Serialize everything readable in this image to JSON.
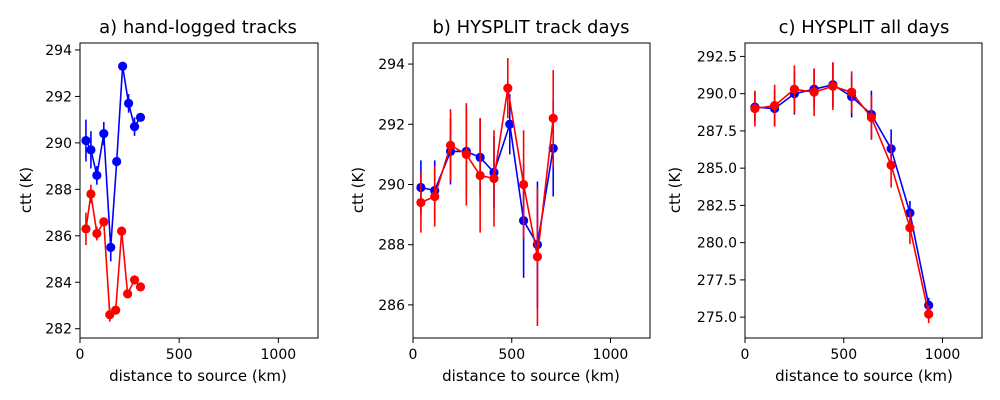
{
  "chart_data": [
    {
      "type": "scatter",
      "title": "a) hand-logged tracks",
      "xlabel": "distance to source (km)",
      "ylabel": "ctt (K)",
      "xlim": [
        0,
        1200
      ],
      "ylim": [
        281.6,
        294.3
      ],
      "xticks": [
        "0",
        "500",
        "1000"
      ],
      "yticks": [
        "282",
        "284",
        "286",
        "288",
        "290",
        "292",
        "294"
      ],
      "series": [
        {
          "name": "blue",
          "color": "#0000ff",
          "x": [
            30,
            55,
            85,
            120,
            155,
            185,
            215,
            245,
            275,
            305
          ],
          "y": [
            290.1,
            289.7,
            288.6,
            290.4,
            285.5,
            289.2,
            293.3,
            291.7,
            290.7,
            291.1
          ],
          "err": [
            0.9,
            0.8,
            0.4,
            0.5,
            0.6,
            0.0,
            0.0,
            0.4,
            0.4,
            0.0
          ]
        },
        {
          "name": "red",
          "color": "#ff0000",
          "x": [
            30,
            55,
            85,
            120,
            150,
            180,
            210,
            240,
            275,
            305
          ],
          "y": [
            286.3,
            287.8,
            286.1,
            286.6,
            282.6,
            282.8,
            286.2,
            283.5,
            284.1,
            283.8
          ],
          "err": [
            0.7,
            0.4,
            0.3,
            0.0,
            0.3,
            0.0,
            0.0,
            0.0,
            0.2,
            0.0
          ]
        }
      ]
    },
    {
      "type": "scatter",
      "title": "b) HYSPLIT track days",
      "xlabel": "distance to source (km)",
      "ylabel": "ctt (K)",
      "xlim": [
        0,
        1200
      ],
      "ylim": [
        284.9,
        294.7
      ],
      "xticks": [
        "0",
        "500",
        "1000"
      ],
      "yticks": [
        "286",
        "288",
        "290",
        "292",
        "294"
      ],
      "series": [
        {
          "name": "blue",
          "color": "#0000ff",
          "x": [
            40,
            110,
            190,
            270,
            340,
            410,
            490,
            560,
            630,
            710
          ],
          "y": [
            289.9,
            289.8,
            291.1,
            291.1,
            290.9,
            290.4,
            292.0,
            288.8,
            288.0,
            291.2
          ],
          "err": [
            0.9,
            1.0,
            1.1,
            1.4,
            1.3,
            1.2,
            1.0,
            1.9,
            2.1,
            1.6
          ]
        },
        {
          "name": "red",
          "color": "#ff0000",
          "x": [
            40,
            110,
            190,
            270,
            340,
            410,
            480,
            560,
            630,
            710
          ],
          "y": [
            289.4,
            289.6,
            291.3,
            291.0,
            290.3,
            290.2,
            293.2,
            290.0,
            287.6,
            292.2
          ],
          "err": [
            1.0,
            1.0,
            1.2,
            1.7,
            1.9,
            1.6,
            1.0,
            1.8,
            2.3,
            1.6
          ]
        }
      ]
    },
    {
      "type": "scatter",
      "title": "c) HYSPLIT all days",
      "xlabel": "distance to source (km)",
      "ylabel": "ctt (K)",
      "xlim": [
        0,
        1200
      ],
      "ylim": [
        273.6,
        293.4
      ],
      "xticks": [
        "0",
        "500",
        "1000"
      ],
      "yticks": [
        "275.0",
        "277.5",
        "280.0",
        "282.5",
        "285.0",
        "287.5",
        "290.0",
        "292.5"
      ],
      "series": [
        {
          "name": "blue",
          "color": "#0000ff",
          "x": [
            50,
            150,
            250,
            350,
            445,
            540,
            640,
            740,
            835,
            930
          ],
          "y": [
            289.1,
            289.0,
            290.0,
            290.3,
            290.6,
            289.8,
            288.6,
            286.3,
            282.0,
            275.8
          ],
          "err": [
            1.0,
            1.2,
            1.4,
            1.3,
            1.5,
            1.4,
            1.6,
            1.3,
            0.8,
            0.5
          ]
        },
        {
          "name": "red",
          "color": "#ff0000",
          "x": [
            50,
            150,
            250,
            350,
            445,
            540,
            640,
            740,
            835,
            930
          ],
          "y": [
            289.0,
            289.2,
            290.3,
            290.1,
            290.5,
            290.1,
            288.4,
            285.2,
            281.0,
            275.2
          ],
          "err": [
            1.2,
            1.4,
            1.6,
            1.6,
            1.6,
            1.4,
            1.5,
            1.5,
            1.1,
            0.6
          ]
        }
      ]
    }
  ]
}
